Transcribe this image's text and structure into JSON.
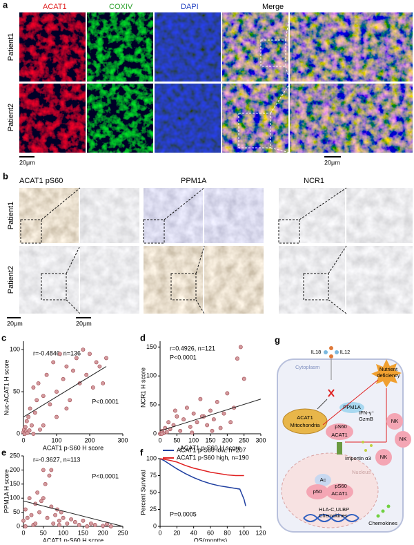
{
  "panel_a": {
    "label": "a",
    "channels": [
      "ACAT1",
      "COXIV",
      "DAPI",
      "Merge"
    ],
    "rows": [
      "Patient1",
      "Patient2"
    ],
    "scale_bars": [
      "20μm",
      "20μm"
    ]
  },
  "panel_b": {
    "label": "b",
    "stains": [
      "ACAT1 pS60",
      "PPM1A",
      "NCR1"
    ],
    "rows": [
      "Patient1",
      "Patient2"
    ],
    "scale_bars": [
      "20μm",
      "20μm"
    ]
  },
  "chart_data": [
    {
      "type": "scatter",
      "label": "c",
      "annotations": [
        "r=-0.4846, n=136",
        "P<0.0001"
      ],
      "x_label": "ACAT1 p-S60 H score",
      "y_label": "Nuc-ACAT1 H score",
      "x": [
        0,
        2,
        4,
        6,
        8,
        10,
        12,
        15,
        18,
        20,
        25,
        30,
        35,
        40,
        45,
        50,
        60,
        70,
        80,
        90,
        100,
        110,
        120,
        130,
        140,
        150,
        160,
        170,
        180,
        190,
        200,
        210,
        220,
        230,
        240,
        250,
        30,
        60,
        100,
        130
      ],
      "y": [
        2,
        5,
        0,
        8,
        3,
        15,
        1,
        20,
        4,
        30,
        10,
        55,
        25,
        40,
        60,
        5,
        45,
        70,
        35,
        85,
        50,
        95,
        65,
        80,
        40,
        75,
        90,
        60,
        100,
        70,
        95,
        55,
        85,
        80,
        60,
        90,
        0,
        10,
        20,
        30
      ],
      "color": "#d49a9e",
      "fit_line": {
        "x": [
          0,
          250
        ],
        "y": [
          20,
          80
        ]
      },
      "xlim": [
        0,
        300
      ],
      "ylim": [
        0,
        110
      ],
      "xticks": [
        0,
        100,
        200,
        300
      ],
      "yticks": [
        0,
        50,
        100
      ]
    },
    {
      "type": "scatter",
      "label": "d",
      "annotations": [
        "r=0.4926, n=121",
        "P<0.0001"
      ],
      "x_label": "ACAT1 p-S60 H score",
      "y_label": "NCR1 H score",
      "x": [
        0,
        3,
        6,
        10,
        15,
        20,
        25,
        30,
        40,
        50,
        60,
        70,
        80,
        90,
        100,
        110,
        120,
        130,
        140,
        150,
        160,
        170,
        180,
        190,
        200,
        210,
        220,
        230,
        240,
        250,
        5,
        45,
        95,
        125,
        155
      ],
      "y": [
        0,
        2,
        5,
        1,
        10,
        3,
        20,
        8,
        15,
        30,
        5,
        25,
        45,
        12,
        35,
        20,
        60,
        30,
        15,
        40,
        25,
        55,
        10,
        35,
        70,
        20,
        45,
        130,
        150,
        95,
        0,
        40,
        2,
        30,
        5
      ],
      "color": "#d49a9e",
      "fit_line": {
        "x": [
          0,
          300
        ],
        "y": [
          5,
          60
        ]
      },
      "xlim": [
        0,
        300
      ],
      "ylim": [
        0,
        160
      ],
      "xticks": [
        0,
        50,
        100,
        150,
        200,
        250,
        300
      ],
      "yticks": [
        0,
        50,
        100,
        150
      ]
    },
    {
      "type": "scatter",
      "label": "e",
      "annotations": [
        "r=-0.3627, n=113",
        "P<0.0001"
      ],
      "x_label": "ACAT1 p-S60 H score",
      "y_label": "PPM1A H score",
      "x": [
        0,
        5,
        10,
        15,
        20,
        25,
        30,
        35,
        40,
        45,
        50,
        55,
        60,
        65,
        70,
        75,
        80,
        85,
        90,
        95,
        100,
        110,
        120,
        130,
        140,
        150,
        160,
        170,
        180,
        200,
        210,
        220,
        5,
        30,
        50,
        70,
        90
      ],
      "y": [
        20,
        60,
        30,
        100,
        40,
        5,
        80,
        120,
        50,
        90,
        200,
        150,
        30,
        180,
        70,
        10,
        40,
        60,
        20,
        50,
        30,
        10,
        25,
        15,
        5,
        20,
        0,
        10,
        5,
        2,
        8,
        0,
        0,
        10,
        100,
        200,
        5
      ],
      "color": "#d49a9e",
      "fit_line": {
        "x": [
          0,
          250
        ],
        "y": [
          90,
          0
        ]
      },
      "xlim": [
        0,
        250
      ],
      "ylim": [
        0,
        250
      ],
      "xticks": [
        0,
        50,
        100,
        150,
        200,
        250
      ],
      "yticks": [
        0,
        50,
        100,
        150,
        200,
        250
      ]
    },
    {
      "type": "line",
      "label": "f",
      "annotations": [
        "P=0.0005"
      ],
      "x_label": "OS(months)",
      "y_label": "Percent Survival",
      "series": [
        {
          "name": "ACAT1 p-S60 low, n=207",
          "color": "#1f3fa0",
          "x": [
            0,
            5,
            10,
            20,
            30,
            40,
            50,
            60,
            70,
            80,
            90,
            95,
            100,
            102
          ],
          "values": [
            100,
            97,
            93,
            85,
            78,
            72,
            67,
            63,
            60,
            58,
            56,
            55,
            40,
            30
          ]
        },
        {
          "name": "ACAT1 p-S60 high, n=190",
          "color": "#e02020",
          "x": [
            0,
            10,
            20,
            30,
            40,
            50,
            60,
            70,
            80,
            90,
            100
          ],
          "values": [
            100,
            98,
            95,
            90,
            86,
            83,
            80,
            78,
            76,
            75,
            75
          ]
        }
      ],
      "xlim": [
        0,
        120
      ],
      "ylim": [
        0,
        100
      ],
      "xticks": [
        0,
        20,
        40,
        60,
        80,
        100,
        120
      ],
      "yticks": [
        0,
        25,
        50,
        75,
        100
      ]
    }
  ],
  "panel_g": {
    "label": "g",
    "il18": "IL18",
    "il12": "IL12",
    "cytoplasm": "Cytoplasm",
    "ppm1a": "PPM1A",
    "acat1_mito": "ACAT1",
    "mitochondria": "Mitochondria",
    "nutrient": "Nutrient",
    "deficiency": "deficiency",
    "ps60_a": "pS60",
    "acat1_a": "ACAT1",
    "importin": "Importin α3",
    "ac": "Ac",
    "p50": "p50",
    "ps60_b": "pS60",
    "acat1_b": "ACAT1",
    "nucleus": "Nucleus",
    "hla": "HLA-C,ULBP",
    "chemokines_in": "Chemokines",
    "ifn": "IFN-γ⁺",
    "gzmb": "GzmB",
    "nk": [
      "NK",
      "NK",
      "NK"
    ],
    "chemokines_out": "Chemokines"
  }
}
